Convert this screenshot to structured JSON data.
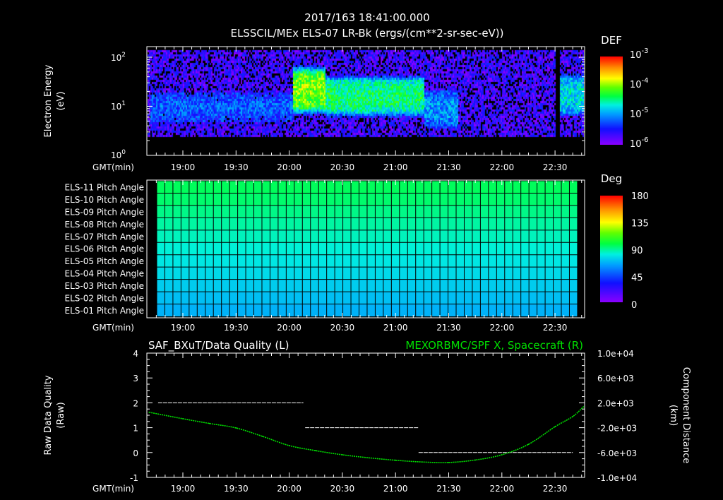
{
  "header": {
    "datetime": "2017/163 18:41:00.000",
    "spectrogram_title": "ELSSCIL/MEx ELS-07 LR-Bk  (ergs/(cm**2-sr-sec-eV))"
  },
  "colors": {
    "background": "#000000",
    "axes": "#ffffff",
    "curve": "#00e000"
  },
  "chart_data": [
    {
      "type": "heatmap",
      "name": "electron-spectrogram",
      "ylabel": [
        "Electron Energy",
        "(eV)"
      ],
      "xlabel": "GMT(min)",
      "xticks": [
        "19:00",
        "19:30",
        "20:00",
        "20:30",
        "21:00",
        "21:30",
        "22:00",
        "22:30"
      ],
      "yscale": "log",
      "ylim": [
        1,
        160
      ],
      "yticks": [
        {
          "base": "10",
          "exp": "0"
        },
        {
          "base": "10",
          "exp": "1"
        },
        {
          "base": "10",
          "exp": "2"
        }
      ],
      "xlim": [
        "18:41",
        "22:47"
      ],
      "colorbar": {
        "label": "DEF",
        "scale": "log",
        "range": [
          1e-06,
          0.001
        ],
        "ticks": [
          {
            "base": "10",
            "exp": "-3"
          },
          {
            "base": "10",
            "exp": "-4"
          },
          {
            "base": "10",
            "exp": "-5"
          },
          {
            "base": "10",
            "exp": "-6"
          }
        ]
      },
      "features": [
        {
          "start": "18:41",
          "end": "20:02",
          "energy_eV": [
            5,
            20
          ],
          "log_def": -5.2
        },
        {
          "start": "20:02",
          "end": "20:20",
          "energy_eV": [
            10,
            50
          ],
          "log_def": -4.0
        },
        {
          "start": "20:20",
          "end": "21:16",
          "energy_eV": [
            8,
            35
          ],
          "log_def": -4.4
        },
        {
          "start": "21:16",
          "end": "21:35",
          "energy_eV": [
            4,
            20
          ],
          "log_def": -5.0
        },
        {
          "start": "21:35",
          "end": "22:30",
          "energy_eV": [
            3,
            20
          ],
          "log_def": -5.8
        },
        {
          "start": "22:30",
          "end": "22:32",
          "energy_eV": [
            1,
            160
          ],
          "log_def": null
        },
        {
          "start": "22:32",
          "end": "22:47",
          "energy_eV": [
            8,
            40
          ],
          "log_def": -4.7
        }
      ]
    },
    {
      "type": "heatmap",
      "name": "pitch-angle",
      "xlabel": "GMT(min)",
      "xticks": [
        "19:00",
        "19:30",
        "20:00",
        "20:30",
        "21:00",
        "21:30",
        "22:00",
        "22:30"
      ],
      "rows": [
        "ELS-11 Pitch Angle",
        "ELS-10 Pitch Angle",
        "ELS-09 Pitch Angle",
        "ELS-08 Pitch Angle",
        "ELS-07 Pitch Angle",
        "ELS-06 Pitch Angle",
        "ELS-05 Pitch Angle",
        "ELS-04 Pitch Angle",
        "ELS-03 Pitch Angle",
        "ELS-02 Pitch Angle",
        "ELS-01 Pitch Angle"
      ],
      "row_values_deg": [
        96,
        94,
        91,
        88,
        85,
        82,
        79,
        76,
        73,
        70,
        67
      ],
      "colorbar": {
        "label": "Deg",
        "range": [
          0,
          180
        ],
        "ticks": [
          "180",
          "135",
          "90",
          "45",
          "0"
        ]
      }
    },
    {
      "type": "line",
      "name": "quality-and-position",
      "left_title": "SAF_BXuT/Data Quality (L)",
      "right_title": "MEXORBMC/SPF X, Spacecraft (R)",
      "ylabel_left": [
        "Raw Data Quality",
        "(Raw)"
      ],
      "ylabel_right": [
        "Component Distance",
        "(km)"
      ],
      "xlabel": "GMT(min)",
      "xticks": [
        "19:00",
        "19:30",
        "20:00",
        "20:30",
        "21:00",
        "21:30",
        "22:00",
        "22:30"
      ],
      "ylim_left": [
        -1,
        4
      ],
      "yticks_left": [
        "4",
        "3",
        "2",
        "1",
        "0",
        "-1"
      ],
      "ylim_right": [
        -10000,
        10000
      ],
      "yticks_right": [
        "1.0e+04",
        "6.0e+03",
        "2.0e+03",
        "-2.0e+03",
        "-6.0e+03",
        "-1.0e+04"
      ],
      "series": [
        {
          "name": "Data Quality",
          "axis": "left",
          "color": "#ffffff",
          "segments": [
            {
              "start": "18:46",
              "end": "20:08",
              "value": 2
            },
            {
              "start": "20:09",
              "end": "21:13",
              "value": 1
            },
            {
              "start": "21:13",
              "end": "22:40",
              "value": 0
            }
          ]
        },
        {
          "name": "SPF X",
          "axis": "right",
          "color": "#00e000",
          "x": [
            "18:41",
            "19:00",
            "19:15",
            "19:30",
            "19:45",
            "20:00",
            "20:15",
            "20:30",
            "20:45",
            "21:00",
            "21:15",
            "21:30",
            "21:45",
            "22:00",
            "22:15",
            "22:30",
            "22:40",
            "22:46"
          ],
          "y": [
            480,
            -560,
            -1320,
            -2040,
            -3400,
            -4880,
            -5700,
            -6360,
            -6850,
            -7240,
            -7520,
            -7600,
            -7200,
            -6360,
            -4680,
            -1840,
            -200,
            1360
          ]
        }
      ]
    }
  ]
}
